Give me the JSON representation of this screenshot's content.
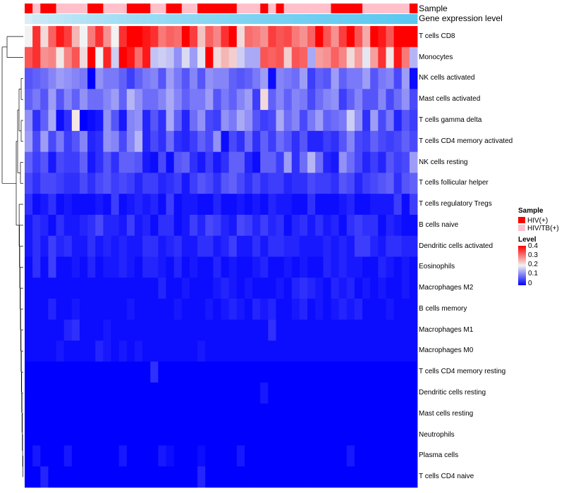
{
  "chart_data": {
    "type": "heatmap",
    "title": "",
    "annotations": {
      "sample": {
        "label": "Sample",
        "legend_title": "Sample",
        "colors": {
          "HIV(+)": "#ff0000",
          "HIV/TB(+)": "#ffc0cb"
        },
        "levels": [
          "HIV(+)",
          "HIV/TB(+)"
        ],
        "values": [
          "HIV(+)",
          "HIV/TB(+)",
          "HIV(+)",
          "HIV(+)",
          "HIV/TB(+)",
          "HIV/TB(+)",
          "HIV/TB(+)",
          "HIV/TB(+)",
          "HIV(+)",
          "HIV(+)",
          "HIV/TB(+)",
          "HIV/TB(+)",
          "HIV/TB(+)",
          "HIV(+)",
          "HIV(+)",
          "HIV(+)",
          "HIV/TB(+)",
          "HIV/TB(+)",
          "HIV(+)",
          "HIV(+)",
          "HIV/TB(+)",
          "HIV/TB(+)",
          "HIV(+)",
          "HIV(+)",
          "HIV(+)",
          "HIV(+)",
          "HIV(+)",
          "HIV/TB(+)",
          "HIV/TB(+)",
          "HIV/TB(+)",
          "HIV(+)",
          "HIV/TB(+)",
          "HIV(+)",
          "HIV/TB(+)",
          "HIV/TB(+)",
          "HIV/TB(+)",
          "HIV/TB(+)",
          "HIV/TB(+)",
          "HIV/TB(+)",
          "HIV(+)",
          "HIV(+)",
          "HIV(+)",
          "HIV(+)",
          "HIV/TB(+)",
          "HIV/TB(+)",
          "HIV/TB(+)",
          "HIV/TB(+)",
          "HIV/TB(+)",
          "HIV/TB(+)",
          "HIV(+)"
        ]
      },
      "gene_expression": {
        "label": "Gene expression level",
        "colors": {
          "low": "#d9eef8",
          "high": "#5ac8f0"
        }
      }
    },
    "rows": [
      "T cells CD8",
      "Monocytes",
      "NK cells activated",
      "Mast cells activated",
      "T cells gamma delta",
      "T cells CD4 memory activated",
      "NK cells resting",
      "T cells follicular helper",
      "T cells regulatory  Tregs",
      "B cells naive",
      "Dendritic cells activated",
      "Eosinophils",
      "Macrophages M2",
      "B cells memory",
      "Macrophages M1",
      "Macrophages M0",
      "T cells CD4 memory resting",
      "Dendritic cells resting",
      "Mast cells resting",
      "Neutrophils",
      "Plasma cells",
      "T cells CD4 naive"
    ],
    "n_columns": 50,
    "values": [
      [
        0.2,
        0.36,
        0.22,
        0.32,
        0.38,
        0.35,
        0.25,
        0.2,
        0.3,
        0.36,
        0.28,
        0.2,
        0.36,
        0.4,
        0.44,
        0.38,
        0.36,
        0.3,
        0.32,
        0.31,
        0.4,
        0.35,
        0.24,
        0.32,
        0.29,
        0.36,
        0.43,
        0.22,
        0.31,
        0.3,
        0.28,
        0.35,
        0.33,
        0.34,
        0.3,
        0.28,
        0.32,
        0.4,
        0.33,
        0.28,
        0.35,
        0.43,
        0.33,
        0.26,
        0.42,
        0.38,
        0.33,
        0.44,
        0.4,
        0.44
      ],
      [
        0.33,
        0.36,
        0.28,
        0.29,
        0.21,
        0.29,
        0.33,
        0.22,
        0.45,
        0.2,
        0.37,
        0.17,
        0.44,
        0.38,
        0.31,
        0.38,
        0.16,
        0.17,
        0.16,
        0.12,
        0.18,
        0.13,
        0.19,
        0.4,
        0.22,
        0.25,
        0.23,
        0.17,
        0.14,
        0.14,
        0.33,
        0.32,
        0.33,
        0.23,
        0.33,
        0.32,
        0.14,
        0.27,
        0.28,
        0.32,
        0.29,
        0.22,
        0.27,
        0.19,
        0.27,
        0.36,
        0.21,
        0.38,
        0.3,
        0.15
      ],
      [
        0.07,
        0.08,
        0.09,
        0.11,
        0.13,
        0.12,
        0.11,
        0.1,
        0.0,
        0.12,
        0.1,
        0.1,
        0.08,
        0.05,
        0.08,
        0.1,
        0.11,
        0.07,
        0.13,
        0.1,
        0.07,
        0.11,
        0.07,
        0.12,
        0.11,
        0.11,
        0.08,
        0.07,
        0.08,
        0.1,
        0.13,
        0.01,
        0.11,
        0.1,
        0.09,
        0.13,
        0.05,
        0.08,
        0.07,
        0.13,
        0.08,
        0.1,
        0.1,
        0.13,
        0.07,
        0.1,
        0.11,
        0.06,
        0.13,
        0.01
      ],
      [
        0.08,
        0.1,
        0.07,
        0.13,
        0.07,
        0.11,
        0.08,
        0.12,
        0.09,
        0.09,
        0.11,
        0.13,
        0.08,
        0.15,
        0.12,
        0.09,
        0.09,
        0.11,
        0.14,
        0.11,
        0.08,
        0.1,
        0.1,
        0.13,
        0.07,
        0.1,
        0.08,
        0.11,
        0.13,
        0.05,
        0.22,
        0.08,
        0.11,
        0.08,
        0.11,
        0.1,
        0.06,
        0.09,
        0.11,
        0.12,
        0.05,
        0.08,
        0.11,
        0.07,
        0.07,
        0.11,
        0.06,
        0.09,
        0.12,
        0.06
      ],
      [
        0.12,
        0.04,
        0.08,
        0.14,
        0.01,
        0.04,
        0.21,
        0.0,
        0.01,
        0.02,
        0.12,
        0.07,
        0.02,
        0.11,
        0.12,
        0.03,
        0.07,
        0.04,
        0.14,
        0.08,
        0.03,
        0.09,
        0.12,
        0.06,
        0.05,
        0.12,
        0.1,
        0.14,
        0.12,
        0.07,
        0.05,
        0.06,
        0.14,
        0.09,
        0.11,
        0.06,
        0.1,
        0.13,
        0.08,
        0.09,
        0.1,
        0.17,
        0.12,
        0.04,
        0.13,
        0.06,
        0.1,
        0.03,
        0.07,
        0.05
      ],
      [
        0.13,
        0.06,
        0.13,
        0.06,
        0.1,
        0.05,
        0.07,
        0.11,
        0.03,
        0.04,
        0.12,
        0.11,
        0.06,
        0.11,
        0.15,
        0.03,
        0.06,
        0.04,
        0.09,
        0.04,
        0.03,
        0.05,
        0.08,
        0.06,
        0.12,
        0.01,
        0.06,
        0.04,
        0.09,
        0.04,
        0.08,
        0.05,
        0.09,
        0.07,
        0.04,
        0.07,
        0.03,
        0.03,
        0.05,
        0.04,
        0.07,
        0.11,
        0.06,
        0.05,
        0.08,
        0.06,
        0.05,
        0.06,
        0.08,
        0.06
      ],
      [
        0.08,
        0.05,
        0.07,
        0.02,
        0.06,
        0.05,
        0.05,
        0.08,
        0.02,
        0.04,
        0.07,
        0.04,
        0.08,
        0.08,
        0.07,
        0.02,
        0.01,
        0.06,
        0.01,
        0.07,
        0.08,
        0.04,
        0.02,
        0.05,
        0.02,
        0.04,
        0.08,
        0.08,
        0.03,
        0.01,
        0.08,
        0.08,
        0.05,
        0.13,
        0.04,
        0.09,
        0.15,
        0.09,
        0.03,
        0.02,
        0.12,
        0.09,
        0.06,
        0.03,
        0.05,
        0.03,
        0.07,
        0.05,
        0.06,
        0.13
      ],
      [
        0.06,
        0.04,
        0.06,
        0.06,
        0.05,
        0.04,
        0.04,
        0.06,
        0.04,
        0.06,
        0.07,
        0.05,
        0.06,
        0.05,
        0.03,
        0.05,
        0.05,
        0.03,
        0.04,
        0.05,
        0.02,
        0.05,
        0.07,
        0.06,
        0.04,
        0.07,
        0.08,
        0.06,
        0.04,
        0.06,
        0.04,
        0.05,
        0.05,
        0.03,
        0.04,
        0.04,
        0.06,
        0.05,
        0.05,
        0.04,
        0.07,
        0.06,
        0.03,
        0.05,
        0.06,
        0.07,
        0.08,
        0.04,
        0.07,
        0.08
      ],
      [
        0.04,
        0.01,
        0.02,
        0.04,
        0.01,
        0.02,
        0.01,
        0.01,
        0.01,
        0.02,
        0.01,
        0.05,
        0.01,
        0.02,
        0.03,
        0.02,
        0.03,
        0.01,
        0.05,
        0.01,
        0.02,
        0.02,
        0.01,
        0.01,
        0.03,
        0.01,
        0.01,
        0.02,
        0.01,
        0.02,
        0.01,
        0.03,
        0.02,
        0.02,
        0.01,
        0.01,
        0.04,
        0.01,
        0.01,
        0.01,
        0.02,
        0.03,
        0.01,
        0.01,
        0.02,
        0.02,
        0.02,
        0.05,
        0.01,
        0.05
      ],
      [
        0.02,
        0.04,
        0.03,
        0.01,
        0.04,
        0.02,
        0.02,
        0.03,
        0.04,
        0.06,
        0.03,
        0.03,
        0.02,
        0.05,
        0.02,
        0.03,
        0.01,
        0.04,
        0.04,
        0.01,
        0.02,
        0.05,
        0.03,
        0.06,
        0.05,
        0.03,
        0.02,
        0.06,
        0.05,
        0.03,
        0.05,
        0.03,
        0.04,
        0.01,
        0.03,
        0.04,
        0.02,
        0.04,
        0.02,
        0.03,
        0.01,
        0.04,
        0.05,
        0.04,
        0.04,
        0.01,
        0.03,
        0.02,
        0.01,
        0.01
      ],
      [
        0.02,
        0.04,
        0.02,
        0.05,
        0.03,
        0.04,
        0.02,
        0.02,
        0.04,
        0.02,
        0.03,
        0.02,
        0.03,
        0.02,
        0.02,
        0.04,
        0.04,
        0.02,
        0.03,
        0.04,
        0.02,
        0.02,
        0.04,
        0.04,
        0.02,
        0.03,
        0.05,
        0.02,
        0.02,
        0.04,
        0.02,
        0.04,
        0.04,
        0.03,
        0.03,
        0.02,
        0.02,
        0.02,
        0.03,
        0.02,
        0.03,
        0.02,
        0.05,
        0.05,
        0.03,
        0.02,
        0.04,
        0.04,
        0.03,
        0.03
      ],
      [
        0.01,
        0.04,
        0.01,
        0.05,
        0.01,
        0.01,
        0.02,
        0.01,
        0.03,
        0.01,
        0.02,
        0.02,
        0.03,
        0.02,
        0.01,
        0.03,
        0.03,
        0.02,
        0.01,
        0.03,
        0.01,
        0.02,
        0.01,
        0.01,
        0.03,
        0.01,
        0.02,
        0.01,
        0.01,
        0.02,
        0.03,
        0.01,
        0.01,
        0.02,
        0.01,
        0.02,
        0.01,
        0.01,
        0.03,
        0.02,
        0.03,
        0.02,
        0.02,
        0.01,
        0.01,
        0.03,
        0.02,
        0.01,
        0.02,
        0.01
      ],
      [
        0.01,
        0.01,
        0.01,
        0.01,
        0.01,
        0.01,
        0.01,
        0.01,
        0.01,
        0.01,
        0.01,
        0.01,
        0.01,
        0.01,
        0.01,
        0.01,
        0.01,
        0.03,
        0.01,
        0.01,
        0.02,
        0.01,
        0.01,
        0.01,
        0.02,
        0.03,
        0.02,
        0.01,
        0.02,
        0.01,
        0.01,
        0.01,
        0.02,
        0.01,
        0.03,
        0.04,
        0.03,
        0.02,
        0.01,
        0.03,
        0.02,
        0.03,
        0.01,
        0.02,
        0.01,
        0.02,
        0.01,
        0.01,
        0.02,
        0.01
      ],
      [
        0.01,
        0.01,
        0.01,
        0.03,
        0.01,
        0.01,
        0.02,
        0.01,
        0.01,
        0.01,
        0.01,
        0.01,
        0.01,
        0.02,
        0.01,
        0.01,
        0.01,
        0.01,
        0.01,
        0.02,
        0.01,
        0.01,
        0.01,
        0.02,
        0.01,
        0.02,
        0.03,
        0.02,
        0.01,
        0.03,
        0.02,
        0.03,
        0.01,
        0.01,
        0.02,
        0.03,
        0.01,
        0.02,
        0.01,
        0.02,
        0.03,
        0.02,
        0.03,
        0.01,
        0.01,
        0.01,
        0.02,
        0.01,
        0.01,
        0.01
      ],
      [
        0.01,
        0.01,
        0.01,
        0.01,
        0.01,
        0.03,
        0.04,
        0.01,
        0.01,
        0.01,
        0.02,
        0.01,
        0.01,
        0.01,
        0.01,
        0.01,
        0.01,
        0.01,
        0.01,
        0.01,
        0.01,
        0.01,
        0.01,
        0.01,
        0.01,
        0.01,
        0.01,
        0.01,
        0.01,
        0.01,
        0.01,
        0.04,
        0.01,
        0.01,
        0.01,
        0.01,
        0.01,
        0.01,
        0.01,
        0.01,
        0.01,
        0.01,
        0.01,
        0.01,
        0.01,
        0.01,
        0.01,
        0.01,
        0.01,
        0.01
      ],
      [
        0.01,
        0.01,
        0.01,
        0.01,
        0.02,
        0.01,
        0.01,
        0.01,
        0.01,
        0.03,
        0.02,
        0.01,
        0.02,
        0.01,
        0.02,
        0.01,
        0.01,
        0.01,
        0.01,
        0.01,
        0.01,
        0.01,
        0.02,
        0.01,
        0.01,
        0.01,
        0.01,
        0.01,
        0.01,
        0.01,
        0.01,
        0.01,
        0.01,
        0.01,
        0.01,
        0.01,
        0.01,
        0.01,
        0.01,
        0.01,
        0.01,
        0.01,
        0.01,
        0.01,
        0.01,
        0.01,
        0.01,
        0.01,
        0.01,
        0.01
      ],
      [
        0.0,
        0.0,
        0.0,
        0.0,
        0.0,
        0.0,
        0.0,
        0.0,
        0.0,
        0.0,
        0.0,
        0.0,
        0.0,
        0.0,
        0.0,
        0.0,
        0.04,
        0.0,
        0.0,
        0.0,
        0.0,
        0.0,
        0.0,
        0.0,
        0.0,
        0.0,
        0.0,
        0.0,
        0.0,
        0.0,
        0.0,
        0.0,
        0.0,
        0.0,
        0.0,
        0.0,
        0.0,
        0.0,
        0.0,
        0.0,
        0.0,
        0.0,
        0.0,
        0.0,
        0.0,
        0.0,
        0.0,
        0.0,
        0.0,
        0.0
      ],
      [
        0.0,
        0.0,
        0.0,
        0.0,
        0.0,
        0.0,
        0.0,
        0.0,
        0.0,
        0.0,
        0.0,
        0.0,
        0.0,
        0.0,
        0.0,
        0.0,
        0.0,
        0.0,
        0.0,
        0.0,
        0.0,
        0.0,
        0.0,
        0.0,
        0.0,
        0.0,
        0.0,
        0.0,
        0.0,
        0.0,
        0.02,
        0.0,
        0.0,
        0.0,
        0.0,
        0.0,
        0.0,
        0.0,
        0.0,
        0.0,
        0.0,
        0.0,
        0.0,
        0.0,
        0.0,
        0.0,
        0.0,
        0.0,
        0.0,
        0.0
      ],
      [
        0.0,
        0.0,
        0.0,
        0.0,
        0.0,
        0.0,
        0.0,
        0.0,
        0.0,
        0.0,
        0.0,
        0.0,
        0.0,
        0.0,
        0.0,
        0.0,
        0.0,
        0.0,
        0.0,
        0.0,
        0.0,
        0.0,
        0.0,
        0.0,
        0.0,
        0.0,
        0.0,
        0.0,
        0.0,
        0.0,
        0.0,
        0.0,
        0.0,
        0.0,
        0.0,
        0.0,
        0.0,
        0.0,
        0.0,
        0.0,
        0.0,
        0.0,
        0.0,
        0.0,
        0.0,
        0.0,
        0.0,
        0.0,
        0.0,
        0.0
      ],
      [
        0.0,
        0.0,
        0.0,
        0.0,
        0.0,
        0.0,
        0.0,
        0.0,
        0.0,
        0.0,
        0.0,
        0.0,
        0.0,
        0.0,
        0.0,
        0.0,
        0.0,
        0.0,
        0.0,
        0.0,
        0.0,
        0.0,
        0.0,
        0.0,
        0.0,
        0.0,
        0.0,
        0.0,
        0.0,
        0.0,
        0.0,
        0.0,
        0.0,
        0.0,
        0.0,
        0.0,
        0.0,
        0.0,
        0.0,
        0.0,
        0.0,
        0.0,
        0.0,
        0.0,
        0.0,
        0.0,
        0.0,
        0.0,
        0.0,
        0.0
      ],
      [
        0.0,
        0.02,
        0.0,
        0.0,
        0.0,
        0.02,
        0.0,
        0.0,
        0.0,
        0.0,
        0.0,
        0.0,
        0.02,
        0.0,
        0.0,
        0.0,
        0.0,
        0.02,
        0.01,
        0.0,
        0.0,
        0.0,
        0.01,
        0.0,
        0.0,
        0.0,
        0.0,
        0.02,
        0.0,
        0.0,
        0.0,
        0.0,
        0.0,
        0.0,
        0.0,
        0.0,
        0.0,
        0.0,
        0.0,
        0.0,
        0.0,
        0.02,
        0.0,
        0.0,
        0.0,
        0.0,
        0.0,
        0.0,
        0.0,
        0.0
      ],
      [
        0.0,
        0.0,
        0.03,
        0.0,
        0.0,
        0.0,
        0.0,
        0.0,
        0.0,
        0.0,
        0.0,
        0.0,
        0.0,
        0.0,
        0.0,
        0.0,
        0.0,
        0.0,
        0.0,
        0.0,
        0.0,
        0.0,
        0.03,
        0.0,
        0.0,
        0.0,
        0.0,
        0.0,
        0.0,
        0.0,
        0.0,
        0.0,
        0.0,
        0.0,
        0.0,
        0.0,
        0.0,
        0.0,
        0.0,
        0.0,
        0.0,
        0.0,
        0.0,
        0.0,
        0.0,
        0.0,
        0.0,
        0.0,
        0.0,
        0.0
      ]
    ],
    "color_scale": {
      "title": "Level",
      "stops": [
        {
          "value": 0.0,
          "color": "#0000ff"
        },
        {
          "value": 0.2,
          "color": "#f2f2f2"
        },
        {
          "value": 0.4,
          "color": "#ff0000"
        }
      ],
      "ticks": [
        "0.4",
        "0.3",
        "0.2",
        "0.1",
        "0"
      ],
      "range": [
        0,
        0.4
      ]
    },
    "row_dendrogram": true
  }
}
